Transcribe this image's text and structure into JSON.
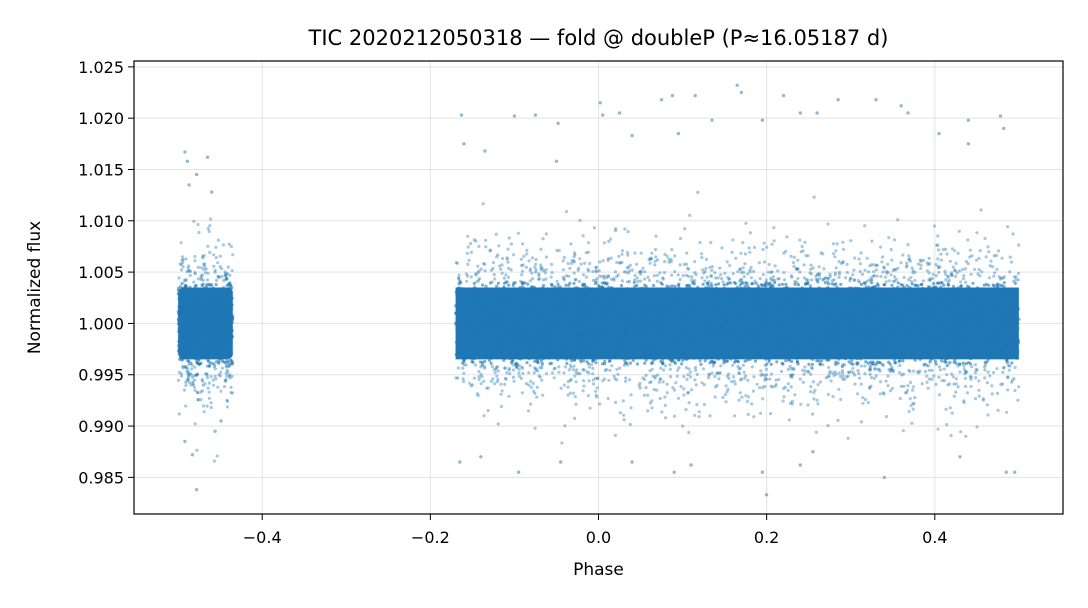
{
  "chart_data": {
    "type": "scatter",
    "title": "TIC 2020212050318 — fold @ doubleP (P≈16.05187 d)",
    "xlabel": "Phase",
    "ylabel": "Normalized flux",
    "xlim": [
      -0.5525,
      0.5525
    ],
    "ylim": [
      0.98143,
      1.02557
    ],
    "xticks": [
      -0.4,
      -0.2,
      0.0,
      0.2,
      0.4
    ],
    "xtick_labels": [
      "−0.4",
      "−0.2",
      "0.0",
      "0.2",
      "0.4"
    ],
    "yticks": [
      0.985,
      0.99,
      0.995,
      1.0,
      1.005,
      1.01,
      1.015,
      1.02,
      1.025
    ],
    "ytick_labels": [
      "0.985",
      "0.990",
      "0.995",
      "1.000",
      "1.005",
      "1.010",
      "1.015",
      "1.020",
      "1.025"
    ],
    "grid": true,
    "point_color": "#1f77b4",
    "series": [
      {
        "phase_ranges": [
          [
            -0.5,
            -0.435
          ],
          [
            -0.17,
            0.5
          ]
        ],
        "flux_center": 1.0,
        "flux_core_halfwidth": 0.0035,
        "points": [
          {
            "x": -0.492,
            "y": 1.0167
          },
          {
            "x": -0.489,
            "y": 1.0158
          },
          {
            "x": -0.465,
            "y": 1.0162
          },
          {
            "x": -0.487,
            "y": 1.0135
          },
          {
            "x": -0.478,
            "y": 1.0145
          },
          {
            "x": -0.46,
            "y": 1.0128
          },
          {
            "x": -0.483,
            "y": 0.9872
          },
          {
            "x": -0.478,
            "y": 0.9838
          },
          {
            "x": -0.456,
            "y": 0.9895
          },
          {
            "x": -0.492,
            "y": 0.9885
          },
          {
            "x": -0.449,
            "y": 0.9905
          },
          {
            "x": -0.163,
            "y": 1.0203
          },
          {
            "x": -0.16,
            "y": 1.0175
          },
          {
            "x": -0.135,
            "y": 1.0168
          },
          {
            "x": -0.1,
            "y": 1.0202
          },
          {
            "x": -0.075,
            "y": 1.0203
          },
          {
            "x": -0.048,
            "y": 1.0195
          },
          {
            "x": -0.05,
            "y": 1.0158
          },
          {
            "x": -0.095,
            "y": 0.9855
          },
          {
            "x": -0.165,
            "y": 0.9865
          },
          {
            "x": -0.14,
            "y": 0.987
          },
          {
            "x": -0.045,
            "y": 0.9865
          },
          {
            "x": 0.002,
            "y": 1.0215
          },
          {
            "x": 0.005,
            "y": 1.0203
          },
          {
            "x": 0.025,
            "y": 1.0205
          },
          {
            "x": 0.04,
            "y": 1.0183
          },
          {
            "x": 0.075,
            "y": 1.0218
          },
          {
            "x": 0.088,
            "y": 1.0222
          },
          {
            "x": 0.095,
            "y": 1.0185
          },
          {
            "x": 0.115,
            "y": 1.0222
          },
          {
            "x": 0.135,
            "y": 1.0198
          },
          {
            "x": 0.165,
            "y": 1.0232
          },
          {
            "x": 0.17,
            "y": 1.0225
          },
          {
            "x": 0.195,
            "y": 1.0198
          },
          {
            "x": 0.22,
            "y": 1.0222
          },
          {
            "x": 0.24,
            "y": 1.0205
          },
          {
            "x": 0.26,
            "y": 1.0205
          },
          {
            "x": 0.285,
            "y": 1.0218
          },
          {
            "x": 0.33,
            "y": 1.0218
          },
          {
            "x": 0.36,
            "y": 1.0212
          },
          {
            "x": 0.368,
            "y": 1.0205
          },
          {
            "x": 0.405,
            "y": 1.0185
          },
          {
            "x": 0.44,
            "y": 1.0198
          },
          {
            "x": 0.478,
            "y": 1.0202
          },
          {
            "x": 0.482,
            "y": 1.019
          },
          {
            "x": 0.44,
            "y": 1.0175
          },
          {
            "x": 0.04,
            "y": 0.9865
          },
          {
            "x": 0.09,
            "y": 0.9855
          },
          {
            "x": 0.11,
            "y": 0.9862
          },
          {
            "x": 0.195,
            "y": 0.9855
          },
          {
            "x": 0.2,
            "y": 0.9833
          },
          {
            "x": 0.24,
            "y": 0.9862
          },
          {
            "x": 0.255,
            "y": 0.9875
          },
          {
            "x": 0.34,
            "y": 0.985
          },
          {
            "x": 0.43,
            "y": 0.987
          },
          {
            "x": 0.485,
            "y": 0.9855
          },
          {
            "x": 0.495,
            "y": 0.9855
          }
        ]
      }
    ]
  }
}
